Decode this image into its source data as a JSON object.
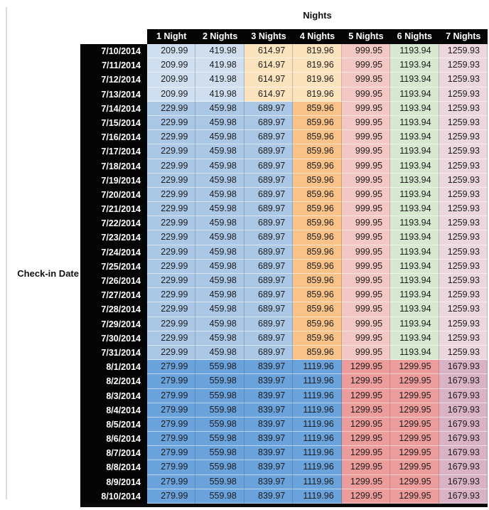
{
  "colors": {
    "header_bg": "#050505",
    "header_text": "#ffffff",
    "label_text": "#111111",
    "window_edge_line": "#dbdbdb",
    "table_bottom_border": "#0a0a0a"
  },
  "chart_data": {
    "type": "table",
    "title": "Nights",
    "row_axis_label": "Check-in Date",
    "columns": [
      "1 Night",
      "2 Nights",
      "3 Nights",
      "4 Nights",
      "5 Nights",
      "6 Nights",
      "7 Nights"
    ],
    "band_colors": {
      "A": [
        "#cfdff0",
        "#cfdff0",
        "#fbe3bd",
        "#fbe3bd",
        "#f3c7c3",
        "#d7e8d0",
        "#ecd7de"
      ],
      "B": [
        "#abc7e6",
        "#abc7e6",
        "#abc7e6",
        "#f9c288",
        "#f3c7c3",
        "#d7e8d0",
        "#ecd7de"
      ],
      "C": [
        "#6aa2dc",
        "#6aa2dc",
        "#6aa2dc",
        "#6aa2dc",
        "#ec9c9a",
        "#ec9c9a",
        "#d9b2c6"
      ]
    },
    "rows": [
      {
        "date": "7/10/2014",
        "band": "A",
        "values": [
          "209.99",
          "419.98",
          "614.97",
          "819.96",
          "999.95",
          "1193.94",
          "1259.93"
        ]
      },
      {
        "date": "7/11/2014",
        "band": "A",
        "values": [
          "209.99",
          "419.98",
          "614.97",
          "819.96",
          "999.95",
          "1193.94",
          "1259.93"
        ]
      },
      {
        "date": "7/12/2014",
        "band": "A",
        "values": [
          "209.99",
          "419.98",
          "614.97",
          "819.96",
          "999.95",
          "1193.94",
          "1259.93"
        ]
      },
      {
        "date": "7/13/2014",
        "band": "A",
        "values": [
          "209.99",
          "419.98",
          "614.97",
          "819.96",
          "999.95",
          "1193.94",
          "1259.93"
        ]
      },
      {
        "date": "7/14/2014",
        "band": "B",
        "values": [
          "229.99",
          "459.98",
          "689.97",
          "859.96",
          "999.95",
          "1193.94",
          "1259.93"
        ]
      },
      {
        "date": "7/15/2014",
        "band": "B",
        "values": [
          "229.99",
          "459.98",
          "689.97",
          "859.96",
          "999.95",
          "1193.94",
          "1259.93"
        ]
      },
      {
        "date": "7/16/2014",
        "band": "B",
        "values": [
          "229.99",
          "459.98",
          "689.97",
          "859.96",
          "999.95",
          "1193.94",
          "1259.93"
        ]
      },
      {
        "date": "7/17/2014",
        "band": "B",
        "values": [
          "229.99",
          "459.98",
          "689.97",
          "859.96",
          "999.95",
          "1193.94",
          "1259.93"
        ]
      },
      {
        "date": "7/18/2014",
        "band": "B",
        "values": [
          "229.99",
          "459.98",
          "689.97",
          "859.96",
          "999.95",
          "1193.94",
          "1259.93"
        ]
      },
      {
        "date": "7/19/2014",
        "band": "B",
        "values": [
          "229.99",
          "459.98",
          "689.97",
          "859.96",
          "999.95",
          "1193.94",
          "1259.93"
        ]
      },
      {
        "date": "7/20/2014",
        "band": "B",
        "values": [
          "229.99",
          "459.98",
          "689.97",
          "859.96",
          "999.95",
          "1193.94",
          "1259.93"
        ]
      },
      {
        "date": "7/21/2014",
        "band": "B",
        "values": [
          "229.99",
          "459.98",
          "689.97",
          "859.96",
          "999.95",
          "1193.94",
          "1259.93"
        ]
      },
      {
        "date": "7/22/2014",
        "band": "B",
        "values": [
          "229.99",
          "459.98",
          "689.97",
          "859.96",
          "999.95",
          "1193.94",
          "1259.93"
        ]
      },
      {
        "date": "7/23/2014",
        "band": "B",
        "values": [
          "229.99",
          "459.98",
          "689.97",
          "859.96",
          "999.95",
          "1193.94",
          "1259.93"
        ]
      },
      {
        "date": "7/24/2014",
        "band": "B",
        "values": [
          "229.99",
          "459.98",
          "689.97",
          "859.96",
          "999.95",
          "1193.94",
          "1259.93"
        ]
      },
      {
        "date": "7/25/2014",
        "band": "B",
        "values": [
          "229.99",
          "459.98",
          "689.97",
          "859.96",
          "999.95",
          "1193.94",
          "1259.93"
        ]
      },
      {
        "date": "7/26/2014",
        "band": "B",
        "values": [
          "229.99",
          "459.98",
          "689.97",
          "859.96",
          "999.95",
          "1193.94",
          "1259.93"
        ]
      },
      {
        "date": "7/27/2014",
        "band": "B",
        "values": [
          "229.99",
          "459.98",
          "689.97",
          "859.96",
          "999.95",
          "1193.94",
          "1259.93"
        ]
      },
      {
        "date": "7/28/2014",
        "band": "B",
        "values": [
          "229.99",
          "459.98",
          "689.97",
          "859.96",
          "999.95",
          "1193.94",
          "1259.93"
        ]
      },
      {
        "date": "7/29/2014",
        "band": "B",
        "values": [
          "229.99",
          "459.98",
          "689.97",
          "859.96",
          "999.95",
          "1193.94",
          "1259.93"
        ]
      },
      {
        "date": "7/30/2014",
        "band": "B",
        "values": [
          "229.99",
          "459.98",
          "689.97",
          "859.96",
          "999.95",
          "1193.94",
          "1259.93"
        ]
      },
      {
        "date": "7/31/2014",
        "band": "B",
        "values": [
          "229.99",
          "459.98",
          "689.97",
          "859.96",
          "999.95",
          "1193.94",
          "1259.93"
        ]
      },
      {
        "date": "8/1/2014",
        "band": "C",
        "values": [
          "279.99",
          "559.98",
          "839.97",
          "1119.96",
          "1299.95",
          "1299.95",
          "1679.93"
        ]
      },
      {
        "date": "8/2/2014",
        "band": "C",
        "values": [
          "279.99",
          "559.98",
          "839.97",
          "1119.96",
          "1299.95",
          "1299.95",
          "1679.93"
        ]
      },
      {
        "date": "8/3/2014",
        "band": "C",
        "values": [
          "279.99",
          "559.98",
          "839.97",
          "1119.96",
          "1299.95",
          "1299.95",
          "1679.93"
        ]
      },
      {
        "date": "8/4/2014",
        "band": "C",
        "values": [
          "279.99",
          "559.98",
          "839.97",
          "1119.96",
          "1299.95",
          "1299.95",
          "1679.93"
        ]
      },
      {
        "date": "8/5/2014",
        "band": "C",
        "values": [
          "279.99",
          "559.98",
          "839.97",
          "1119.96",
          "1299.95",
          "1299.95",
          "1679.93"
        ]
      },
      {
        "date": "8/6/2014",
        "band": "C",
        "values": [
          "279.99",
          "559.98",
          "839.97",
          "1119.96",
          "1299.95",
          "1299.95",
          "1679.93"
        ]
      },
      {
        "date": "8/7/2014",
        "band": "C",
        "values": [
          "279.99",
          "559.98",
          "839.97",
          "1119.96",
          "1299.95",
          "1299.95",
          "1679.93"
        ]
      },
      {
        "date": "8/8/2014",
        "band": "C",
        "values": [
          "279.99",
          "559.98",
          "839.97",
          "1119.96",
          "1299.95",
          "1299.95",
          "1679.93"
        ]
      },
      {
        "date": "8/9/2014",
        "band": "C",
        "values": [
          "279.99",
          "559.98",
          "839.97",
          "1119.96",
          "1299.95",
          "1299.95",
          "1679.93"
        ]
      },
      {
        "date": "8/10/2014",
        "band": "C",
        "values": [
          "279.99",
          "559.98",
          "839.97",
          "1119.96",
          "1299.95",
          "1299.95",
          "1679.93"
        ]
      }
    ]
  }
}
